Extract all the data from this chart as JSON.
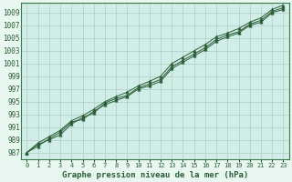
{
  "title": "Graphe pression niveau de la mer (hPa)",
  "xlabel_ticks": [
    0,
    1,
    2,
    3,
    4,
    5,
    6,
    7,
    8,
    9,
    10,
    11,
    12,
    13,
    14,
    15,
    16,
    17,
    18,
    19,
    20,
    21,
    22,
    23
  ],
  "yticks": [
    987,
    989,
    991,
    993,
    995,
    997,
    999,
    1001,
    1003,
    1005,
    1007,
    1009
  ],
  "ylim": [
    986.0,
    1010.5
  ],
  "xlim": [
    -0.5,
    23.5
  ],
  "outer_bg": "#e8f8f0",
  "plot_bg_color": "#d0ede8",
  "grid_color": "#b0ccc4",
  "line_color": "#2a5c35",
  "marker_color": "#2a5c35",
  "axis_label_color": "#2a5c35",
  "spine_color": "#3a7a4a",
  "series": [
    [
      987.0,
      988.3,
      989.0,
      989.8,
      991.5,
      992.5,
      993.2,
      994.8,
      995.5,
      996.0,
      997.2,
      997.8,
      998.5,
      1000.5,
      1001.5,
      1002.5,
      1003.5,
      1004.8,
      1005.5,
      1006.0,
      1007.2,
      1007.8,
      1009.2,
      1009.8
    ],
    [
      987.0,
      988.5,
      989.5,
      990.5,
      992.0,
      992.8,
      993.8,
      995.0,
      995.8,
      996.5,
      997.5,
      998.2,
      999.0,
      1001.0,
      1002.0,
      1003.0,
      1004.0,
      1005.2,
      1005.8,
      1006.5,
      1007.5,
      1008.2,
      1009.5,
      1010.2
    ],
    [
      987.0,
      988.0,
      989.2,
      990.2,
      991.8,
      992.2,
      993.5,
      994.5,
      995.2,
      995.8,
      997.0,
      997.5,
      998.2,
      1000.2,
      1001.2,
      1002.2,
      1003.2,
      1004.5,
      1005.2,
      1005.8,
      1007.0,
      1007.5,
      1009.0,
      1009.5
    ]
  ],
  "title_fontsize": 6.5,
  "tick_fontsize": 5.5,
  "xtick_fontsize": 5.0
}
